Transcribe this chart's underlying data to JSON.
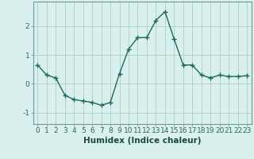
{
  "x": [
    0,
    1,
    2,
    3,
    4,
    5,
    6,
    7,
    8,
    9,
    10,
    11,
    12,
    13,
    14,
    15,
    16,
    17,
    18,
    19,
    20,
    21,
    22,
    23
  ],
  "y": [
    0.65,
    0.3,
    0.2,
    -0.4,
    -0.55,
    -0.6,
    -0.65,
    -0.75,
    -0.65,
    0.35,
    1.2,
    1.6,
    1.6,
    2.2,
    2.5,
    1.55,
    0.65,
    0.65,
    0.3,
    0.2,
    0.3,
    0.25,
    0.25,
    0.28
  ],
  "line_color": "#1a6b5a",
  "marker": "+",
  "marker_size": 4,
  "linewidth": 1.0,
  "bg_color": "#d9f0ee",
  "grid_color": "#b0d4d0",
  "xlabel": "Humidex (Indice chaleur)",
  "xlim": [
    -0.5,
    23.5
  ],
  "ylim": [
    -1.4,
    2.85
  ],
  "yticks": [
    -1,
    0,
    1,
    2
  ],
  "tick_fontsize": 6.5,
  "xlabel_fontsize": 7.5
}
